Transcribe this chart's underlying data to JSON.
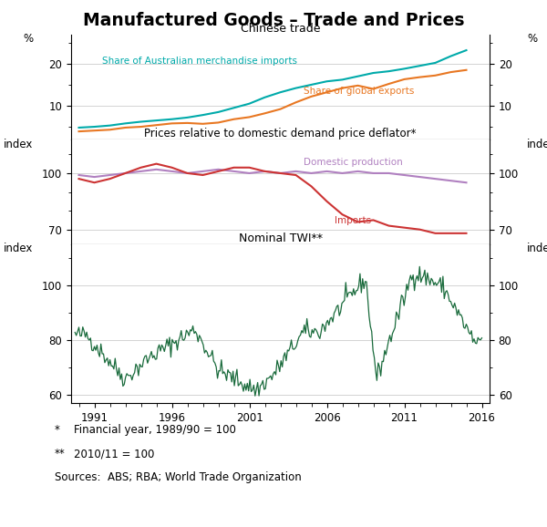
{
  "title": "Manufactured Goods – Trade and Prices",
  "panel1": {
    "title": "Chinese trade",
    "ylabel_left": "%",
    "ylabel_right": "%",
    "ylim": [
      2,
      27
    ],
    "yticks": [
      10,
      20
    ],
    "series": {
      "aus_imports": {
        "label": "Share of Australian merchandise imports",
        "color": "#00AAAA",
        "years": [
          1990,
          1991,
          1992,
          1993,
          1994,
          1995,
          1996,
          1997,
          1998,
          1999,
          2000,
          2001,
          2002,
          2003,
          2004,
          2005,
          2006,
          2007,
          2008,
          2009,
          2010,
          2011,
          2012,
          2013,
          2014,
          2015
        ],
        "values": [
          4.8,
          5.0,
          5.3,
          5.8,
          6.2,
          6.5,
          6.8,
          7.2,
          7.8,
          8.5,
          9.5,
          10.5,
          12.0,
          13.2,
          14.2,
          15.0,
          15.8,
          16.2,
          17.0,
          17.8,
          18.2,
          18.8,
          19.5,
          20.2,
          21.8,
          23.2
        ]
      },
      "global_exports": {
        "label": "Share of global exports",
        "color": "#E87722",
        "years": [
          1990,
          1991,
          1992,
          1993,
          1994,
          1995,
          1996,
          1997,
          1998,
          1999,
          2000,
          2001,
          2002,
          2003,
          2004,
          2005,
          2006,
          2007,
          2008,
          2009,
          2010,
          2011,
          2012,
          2013,
          2014,
          2015
        ],
        "values": [
          3.9,
          4.1,
          4.3,
          4.8,
          5.0,
          5.4,
          5.8,
          5.9,
          5.7,
          6.0,
          6.8,
          7.3,
          8.2,
          9.2,
          10.8,
          12.2,
          13.2,
          14.2,
          14.8,
          14.0,
          15.2,
          16.3,
          16.8,
          17.2,
          18.0,
          18.5
        ]
      }
    }
  },
  "panel2": {
    "title": "Prices relative to domestic demand price deflator*",
    "ylabel_left": "index",
    "ylabel_right": "index",
    "ylim": [
      62,
      118
    ],
    "yticks": [
      70,
      100
    ],
    "series": {
      "domestic": {
        "label": "Domestic production",
        "color": "#B080C0",
        "years": [
          1990,
          1991,
          1992,
          1993,
          1994,
          1995,
          1996,
          1997,
          1998,
          1999,
          2000,
          2001,
          2002,
          2003,
          2004,
          2005,
          2006,
          2007,
          2008,
          2009,
          2010,
          2011,
          2012,
          2013,
          2014,
          2015
        ],
        "values": [
          99,
          98,
          99,
          100,
          101,
          102,
          101,
          100,
          101,
          102,
          101,
          100,
          101,
          100,
          101,
          100,
          101,
          100,
          101,
          100,
          100,
          99,
          98,
          97,
          96,
          95
        ]
      },
      "imports": {
        "label": "Imports",
        "color": "#CC3333",
        "years": [
          1990,
          1991,
          1992,
          1993,
          1994,
          1995,
          1996,
          1997,
          1998,
          1999,
          2000,
          2001,
          2002,
          2003,
          2004,
          2005,
          2006,
          2007,
          2008,
          2009,
          2010,
          2011,
          2012,
          2013,
          2014,
          2015
        ],
        "values": [
          97,
          95,
          97,
          100,
          103,
          105,
          103,
          100,
          99,
          101,
          103,
          103,
          101,
          100,
          99,
          93,
          85,
          78,
          74,
          75,
          72,
          71,
          70,
          68,
          68,
          68
        ]
      }
    }
  },
  "panel3": {
    "title": "Nominal TWI**",
    "ylabel_left": "index",
    "ylabel_right": "index",
    "ylim": [
      57,
      115
    ],
    "yticks": [
      60,
      80,
      100
    ],
    "color": "#1A6B3C",
    "note1": "Financial year, 1989/90 = 100",
    "note2": "2010/11 = 100",
    "sources": "Sources:  ABS; RBA; World Trade Organization"
  },
  "xmin": 1989.5,
  "xmax": 2016.5,
  "xticks": [
    1991,
    1996,
    2001,
    2006,
    2011,
    2016
  ],
  "background_color": "#FFFFFF",
  "grid_color": "#CCCCCC"
}
